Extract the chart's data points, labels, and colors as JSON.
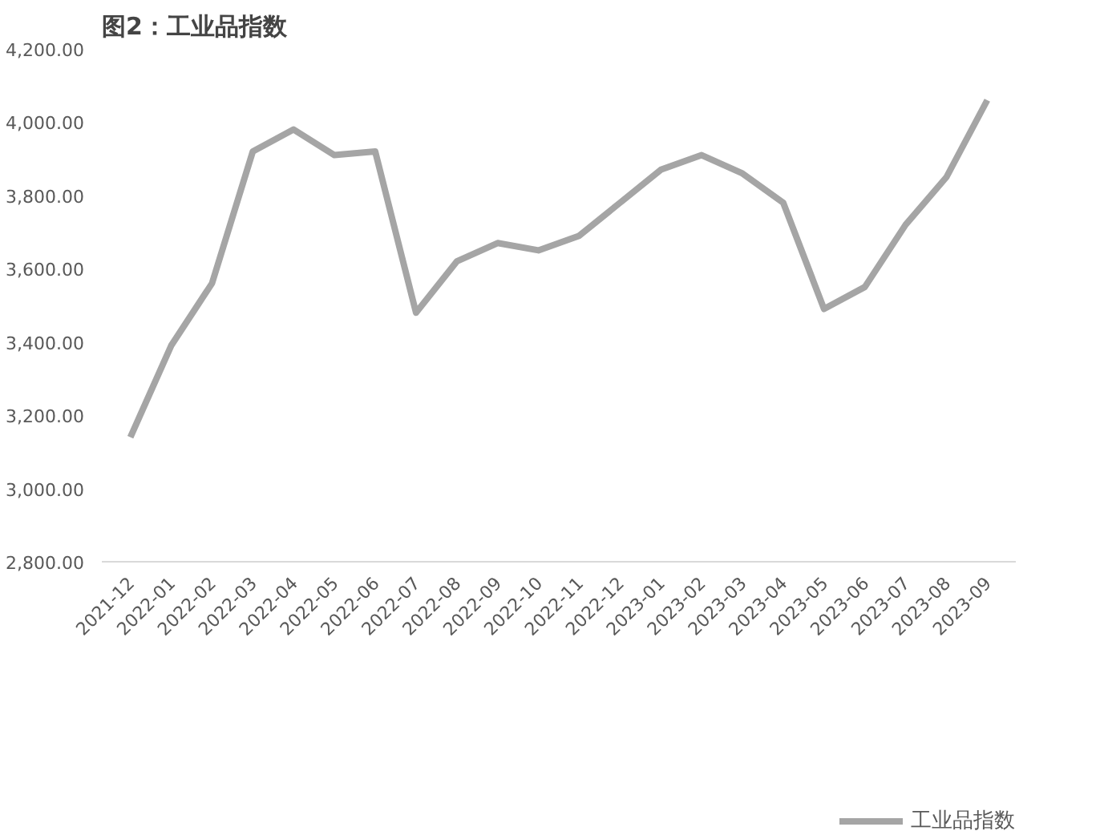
{
  "chart_data": {
    "type": "line",
    "title": "图2：工业品指数",
    "categories": [
      "2021-12",
      "2022-01",
      "2022-02",
      "2022-03",
      "2022-04",
      "2022-05",
      "2022-06",
      "2022-07",
      "2022-08",
      "2022-09",
      "2022-10",
      "2022-11",
      "2022-12",
      "2023-01",
      "2023-02",
      "2023-03",
      "2023-04",
      "2023-05",
      "2023-06",
      "2023-07",
      "2023-08",
      "2023-09"
    ],
    "series": [
      {
        "name": "工业品指数",
        "color": "#a5a5a5",
        "values": [
          3140,
          3390,
          3560,
          3920,
          3980,
          3910,
          3920,
          3480,
          3620,
          3670,
          3650,
          3690,
          3780,
          3870,
          3910,
          3860,
          3780,
          3490,
          3550,
          3720,
          3850,
          4060
        ]
      }
    ],
    "ylim": [
      2800,
      4200
    ],
    "yticks": [
      {
        "value": 2800,
        "label": "2,800.00"
      },
      {
        "value": 3000,
        "label": "3,000.00"
      },
      {
        "value": 3200,
        "label": "3,200.00"
      },
      {
        "value": 3400,
        "label": "3,400.00"
      },
      {
        "value": 3600,
        "label": "3,600.00"
      },
      {
        "value": 3800,
        "label": "3,800.00"
      },
      {
        "value": 4000,
        "label": "4,000.00"
      },
      {
        "value": 4200,
        "label": "4,200.00"
      }
    ],
    "grid": false,
    "legend": "bottom",
    "marker": "none",
    "line_style": "solid"
  }
}
